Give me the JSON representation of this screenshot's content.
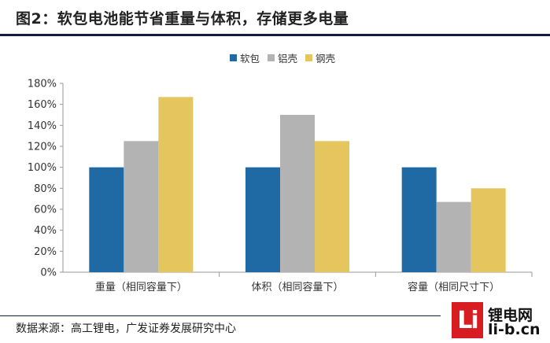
{
  "title": "图2：软包电池能节省重量与体积，存储更多电量",
  "source": "数据来源：高工锂电，广发证券发展研究中心",
  "watermark": {
    "mark": "Li",
    "line1": "锂电网",
    "line2": "li-b.cn"
  },
  "colors": {
    "软包": "#1f6aa5",
    "铝壳": "#b3b3b3",
    "钢壳": "#e5c55d"
  },
  "chart_data": {
    "type": "bar",
    "categories": [
      "重量（相同容量下）",
      "体积（相同容量下）",
      "容量（相同尺寸下）"
    ],
    "series": [
      {
        "name": "软包",
        "values": [
          100,
          100,
          100
        ]
      },
      {
        "name": "铝壳",
        "values": [
          125,
          150,
          67
        ]
      },
      {
        "name": "钢壳",
        "values": [
          167,
          125,
          80
        ]
      }
    ],
    "yticks": [
      "0%",
      "20%",
      "40%",
      "60%",
      "80%",
      "100%",
      "120%",
      "140%",
      "160%",
      "180%"
    ],
    "ylim": [
      0,
      180
    ],
    "unit": "%",
    "grid": false,
    "legend_position": "top-center"
  }
}
